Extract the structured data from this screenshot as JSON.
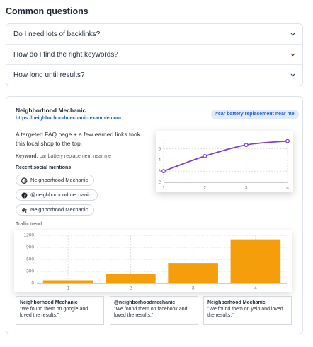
{
  "header": {
    "title": "Common questions"
  },
  "faq": [
    "Do I need lots of backlinks?",
    "How do I find the right keywords?",
    "How long until results?"
  ],
  "case": {
    "business": "Neighborhood Mechanic",
    "url": "https://neighborhoodmechanic.example.com",
    "tag": "#car battery replacement near me",
    "description": "A targeted FAQ page + a few earned links took this local shop to the top.",
    "keyword_label": "Keyword:",
    "keyword": "car battery replacement near me",
    "social_title": "Recent social mentions",
    "mentions": [
      "Neighborhood Mechanic",
      "@neighborhoodmechanic",
      "Neighborhood Mechanic"
    ],
    "traffic_title": "Traffic trend",
    "testimonials": [
      {
        "name": "Neighborhood Mechanic",
        "quote": "\"We found them on google and loved the results.\""
      },
      {
        "name": "@neighborhoodmechanic",
        "quote": "\"We found them on facebook and loved the results.\""
      },
      {
        "name": "Neighborhood Mechanic",
        "quote": "\"We found them on yelp and loved the results.\""
      }
    ]
  },
  "chart_data": [
    {
      "type": "line",
      "x": [
        1,
        2,
        3,
        4
      ],
      "values": [
        3,
        4.35,
        5.35,
        5.7
      ],
      "color": "#7b3fd4",
      "xlim": [
        1,
        4
      ],
      "xticks": [
        1,
        2,
        3,
        4
      ],
      "ylim": [
        2,
        5.8
      ],
      "yticks": [
        2,
        3,
        4,
        5
      ],
      "grid": true
    },
    {
      "type": "bar",
      "categories": [
        "1",
        "2",
        "3",
        "4"
      ],
      "values": [
        80,
        230,
        510,
        1100
      ],
      "color": "#f59e0b",
      "ylim": [
        0,
        1200
      ],
      "yticks": [
        0,
        300,
        600,
        900,
        1200
      ],
      "grid": true
    }
  ]
}
